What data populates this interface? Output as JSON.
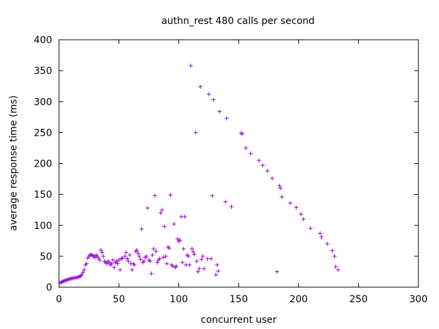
{
  "chart_data": {
    "type": "scatter",
    "title": "authn_rest 480 calls per second",
    "xlabel": "concurrent user",
    "ylabel": "average response time (ms)",
    "xlim": [
      0,
      300
    ],
    "ylim": [
      0,
      400
    ],
    "xticks": [
      0,
      50,
      100,
      150,
      200,
      250,
      300
    ],
    "yticks": [
      0,
      50,
      100,
      150,
      200,
      250,
      300,
      350,
      400
    ],
    "grid": false,
    "legend": "none",
    "marker": "plus",
    "color": "#9400d3",
    "series": [
      {
        "points": [
          [
            1,
            7
          ],
          [
            2,
            8
          ],
          [
            3,
            9
          ],
          [
            4,
            10
          ],
          [
            5,
            11
          ],
          [
            6,
            11
          ],
          [
            7,
            12
          ],
          [
            8,
            13
          ],
          [
            9,
            13
          ],
          [
            10,
            14
          ],
          [
            11,
            14
          ],
          [
            12,
            15
          ],
          [
            13,
            15
          ],
          [
            14,
            15
          ],
          [
            15,
            16
          ],
          [
            16,
            16
          ],
          [
            17,
            17
          ],
          [
            18,
            18
          ],
          [
            19,
            20
          ],
          [
            20,
            24
          ],
          [
            21,
            28
          ],
          [
            22,
            36
          ],
          [
            23,
            38
          ],
          [
            24,
            47
          ],
          [
            25,
            50
          ],
          [
            26,
            52
          ],
          [
            27,
            53
          ],
          [
            28,
            51
          ],
          [
            29,
            50
          ],
          [
            30,
            48
          ],
          [
            31,
            52
          ],
          [
            32,
            50
          ],
          [
            33,
            47
          ],
          [
            34,
            44
          ],
          [
            35,
            60
          ],
          [
            36,
            56
          ],
          [
            37,
            50
          ],
          [
            38,
            42
          ],
          [
            39,
            40
          ],
          [
            40,
            38
          ],
          [
            41,
            42
          ],
          [
            42,
            40
          ],
          [
            43,
            36
          ],
          [
            44,
            38
          ],
          [
            45,
            44
          ],
          [
            46,
            32
          ],
          [
            47,
            40
          ],
          [
            48,
            42
          ],
          [
            49,
            38
          ],
          [
            50,
            44
          ],
          [
            51,
            28
          ],
          [
            52,
            46
          ],
          [
            53,
            47
          ],
          [
            55,
            50
          ],
          [
            56,
            56
          ],
          [
            57,
            46
          ],
          [
            58,
            42
          ],
          [
            59,
            52
          ],
          [
            60,
            38
          ],
          [
            61,
            28
          ],
          [
            62,
            38
          ],
          [
            63,
            36
          ],
          [
            64,
            58
          ],
          [
            65,
            60
          ],
          [
            66,
            55
          ],
          [
            67,
            50
          ],
          [
            68,
            45
          ],
          [
            69,
            94
          ],
          [
            70,
            40
          ],
          [
            71,
            42
          ],
          [
            72,
            48
          ],
          [
            73,
            50
          ],
          [
            74,
            128
          ],
          [
            75,
            44
          ],
          [
            76,
            42
          ],
          [
            77,
            22
          ],
          [
            78,
            52
          ],
          [
            79,
            62
          ],
          [
            80,
            148
          ],
          [
            81,
            58
          ],
          [
            82,
            40
          ],
          [
            83,
            44
          ],
          [
            84,
            46
          ],
          [
            85,
            120
          ],
          [
            86,
            125
          ],
          [
            87,
            48
          ],
          [
            88,
            98
          ],
          [
            89,
            50
          ],
          [
            90,
            38
          ],
          [
            91,
            65
          ],
          [
            92,
            63
          ],
          [
            93,
            149
          ],
          [
            94,
            36
          ],
          [
            95,
            34
          ],
          [
            96,
            102
          ],
          [
            97,
            32
          ],
          [
            98,
            34
          ],
          [
            99,
            78
          ],
          [
            100,
            74
          ],
          [
            101,
            76
          ],
          [
            102,
            114
          ],
          [
            103,
            40
          ],
          [
            104,
            62
          ],
          [
            105,
            114
          ],
          [
            106,
            36
          ],
          [
            107,
            52
          ],
          [
            108,
            50
          ],
          [
            109,
            36
          ],
          [
            110,
            358
          ],
          [
            111,
            62
          ],
          [
            112,
            57
          ],
          [
            113,
            53
          ],
          [
            114,
            250
          ],
          [
            115,
            42
          ],
          [
            116,
            25
          ],
          [
            117,
            30
          ],
          [
            118,
            324
          ],
          [
            119,
            45
          ],
          [
            120,
            50
          ],
          [
            121,
            30
          ],
          [
            124,
            46
          ],
          [
            125,
            312
          ],
          [
            127,
            46
          ],
          [
            128,
            148
          ],
          [
            129,
            303
          ],
          [
            131,
            20
          ],
          [
            132,
            36
          ],
          [
            133,
            26
          ],
          [
            134,
            284
          ],
          [
            139,
            138
          ],
          [
            140,
            273
          ],
          [
            144,
            130
          ],
          [
            152,
            249
          ],
          [
            153,
            248
          ],
          [
            156,
            225
          ],
          [
            160,
            216
          ],
          [
            167,
            205
          ],
          [
            170,
            197
          ],
          [
            174,
            188
          ],
          [
            178,
            176
          ],
          [
            182,
            25
          ],
          [
            184,
            164
          ],
          [
            185,
            160
          ],
          [
            186,
            146
          ],
          [
            193,
            136
          ],
          [
            198,
            129
          ],
          [
            202,
            118
          ],
          [
            204,
            110
          ],
          [
            210,
            95
          ],
          [
            218,
            87
          ],
          [
            219,
            81
          ],
          [
            224,
            70
          ],
          [
            228,
            59
          ],
          [
            230,
            50
          ],
          [
            231,
            33
          ],
          [
            233,
            28
          ]
        ]
      }
    ]
  }
}
